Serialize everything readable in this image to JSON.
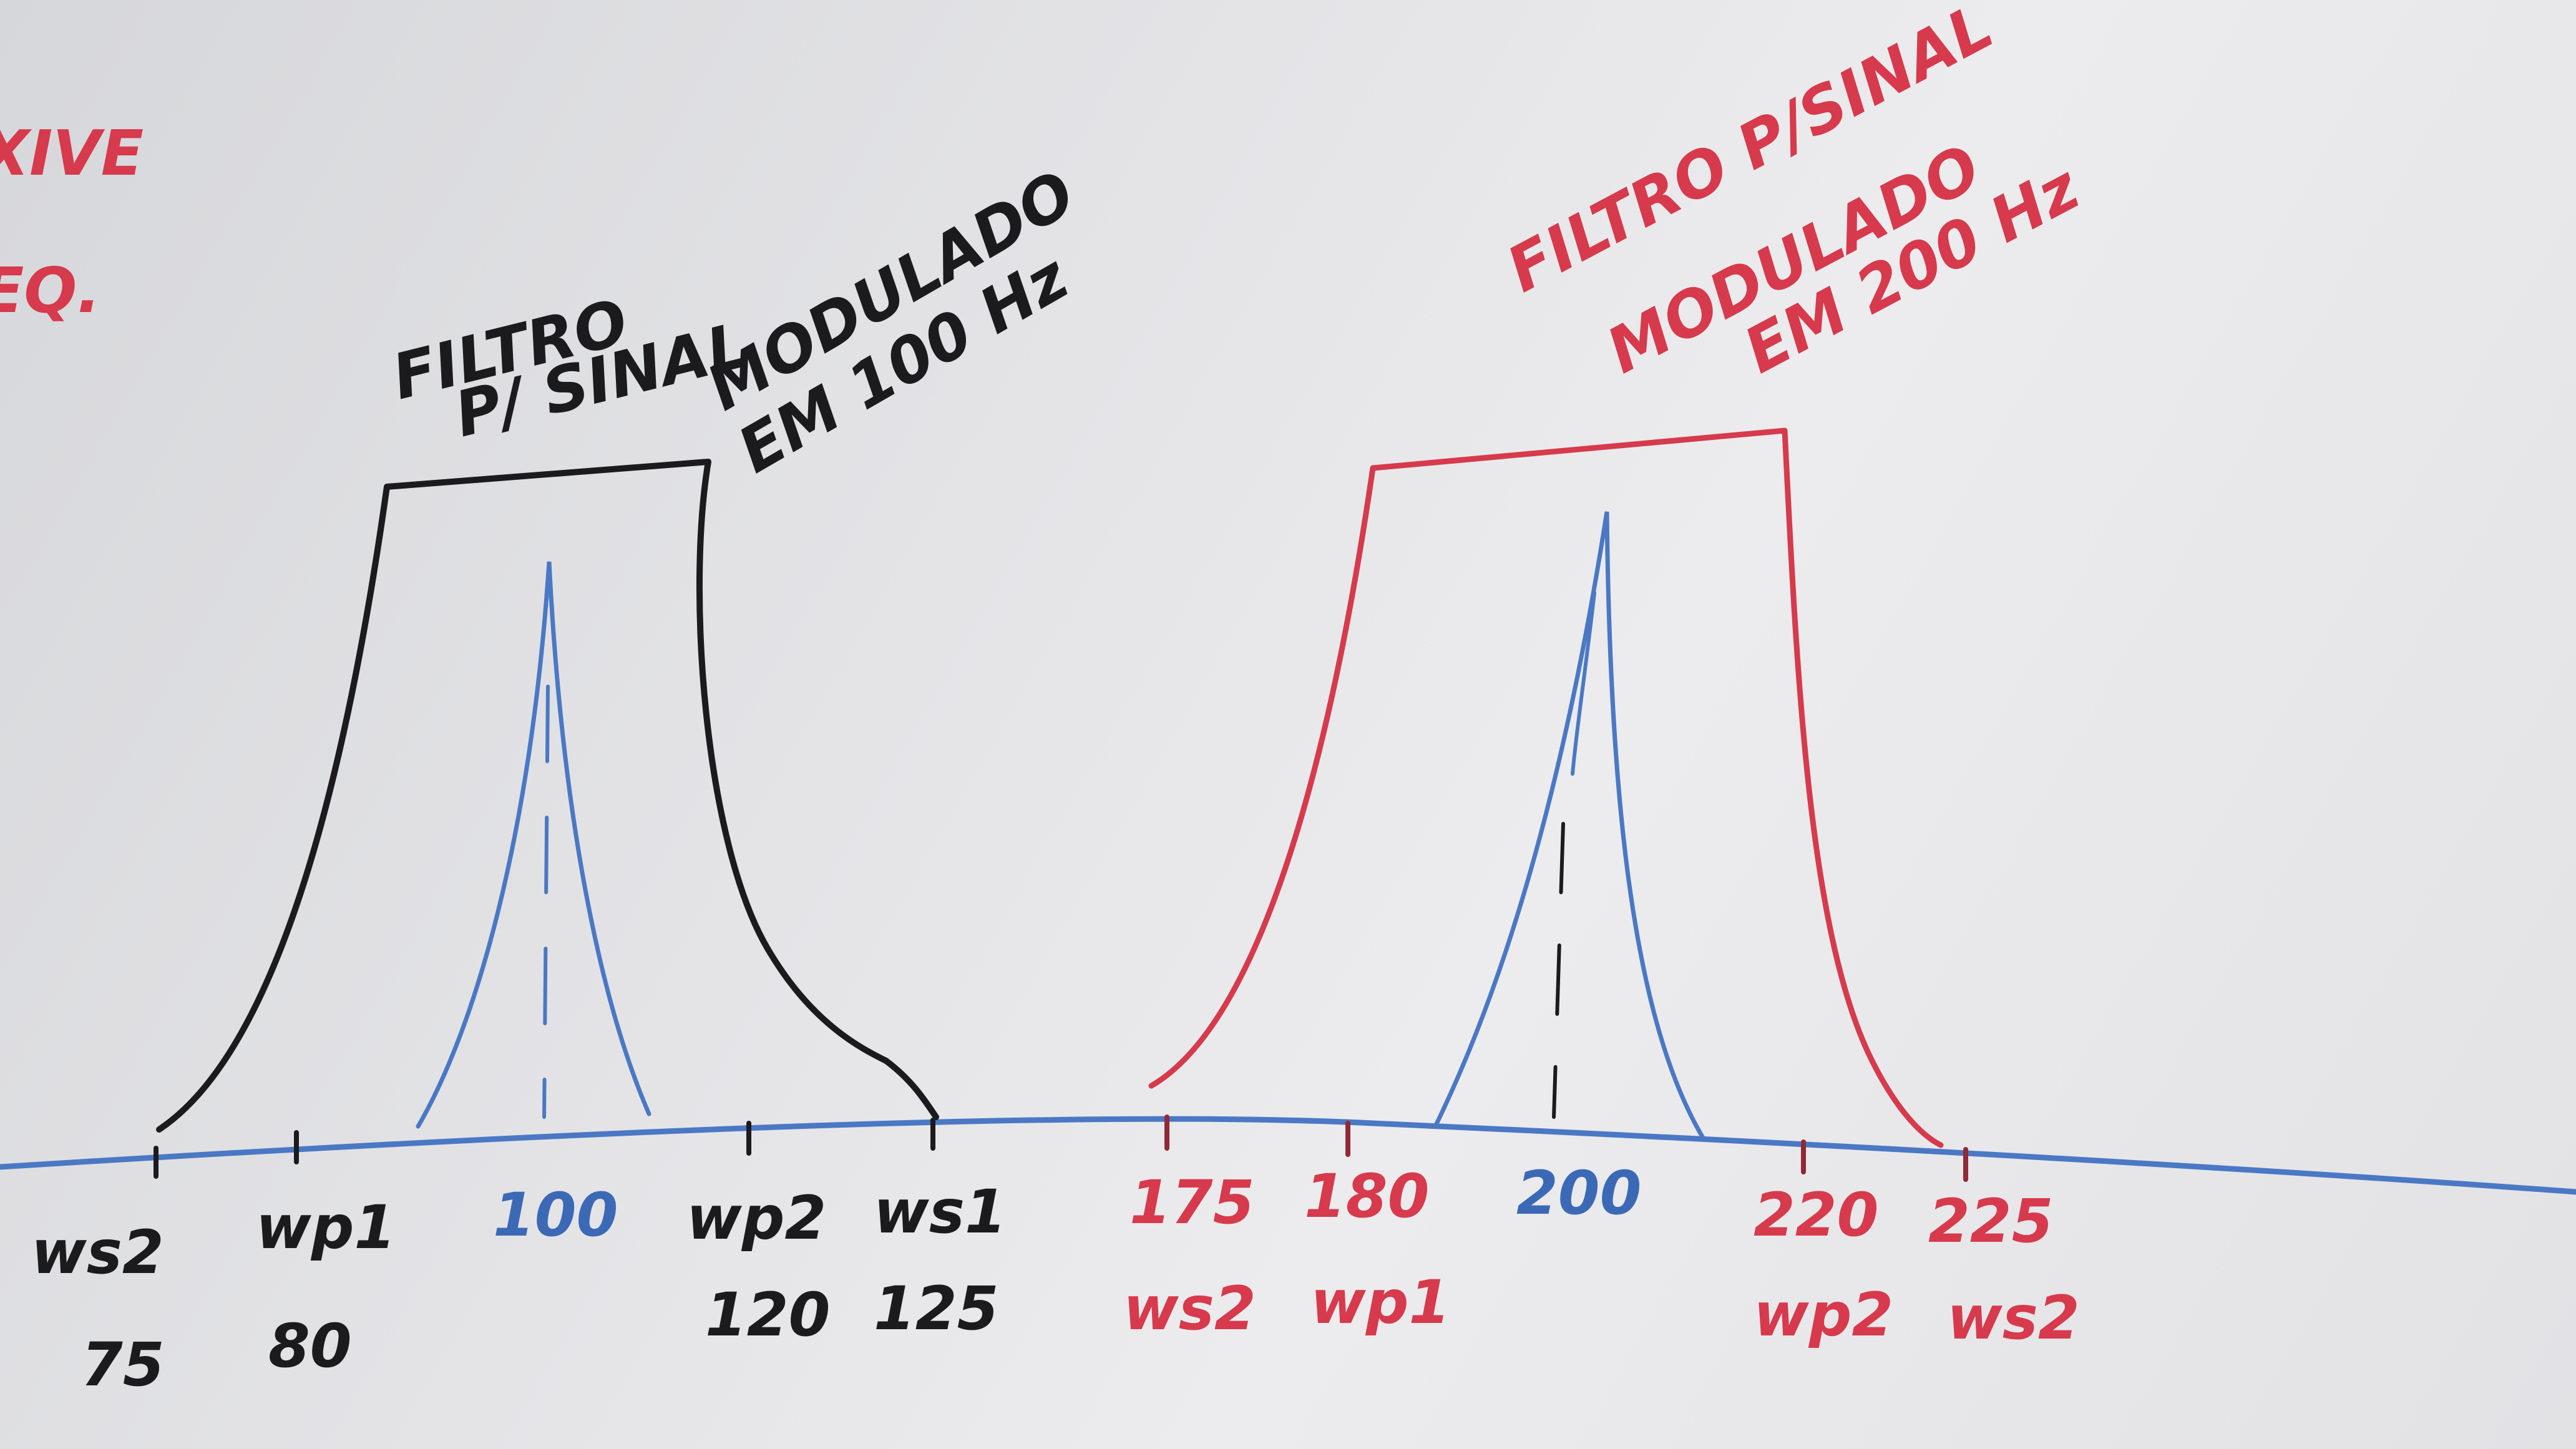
{
  "colors": {
    "black_marker": "#1b1b1d",
    "red_marker": "#d63a4c",
    "blue_marker": "#3c69b5",
    "board": "#e4e4e7"
  },
  "left_edge": {
    "line1": "XIVE",
    "line2": "EQ."
  },
  "left_filter": {
    "caption": [
      "FILTRO",
      "P/ SINAL",
      "MODULADO",
      "EM 100 Hz"
    ],
    "labels": {
      "ws2": "ws2",
      "ws2_value": "75",
      "wp1": "wp1",
      "wp1_value": "80",
      "center": "100",
      "wp2": "wp2",
      "wp2_value": "120",
      "ws1": "ws1",
      "ws1_value": "125"
    }
  },
  "right_filter": {
    "caption": [
      "FILTRO P/SINAL",
      "MODULADO",
      "EM 200 Hz"
    ],
    "labels": {
      "f175": "175",
      "ws2": "ws2",
      "f180": "180",
      "wp1": "wp1",
      "center": "200",
      "f220": "220",
      "wp2": "wp2",
      "f225": "225",
      "ws2b": "ws2"
    }
  }
}
